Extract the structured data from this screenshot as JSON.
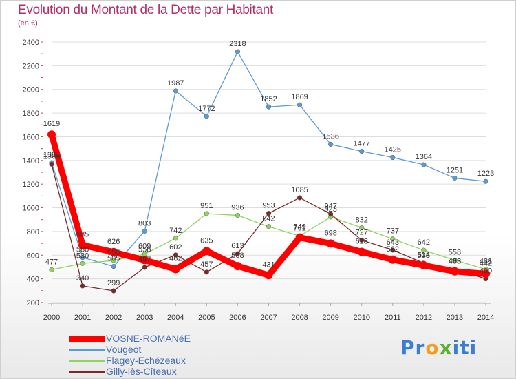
{
  "chart_data": {
    "type": "line",
    "title": "Evolution du Montant de la Dette par Habitant",
    "subtitle": "(en €)",
    "x": [
      "2000",
      "2001",
      "2002",
      "2003",
      "2004",
      "2005",
      "2006",
      "2007",
      "2008",
      "2009",
      "2010",
      "2011",
      "2012",
      "2013",
      "2014"
    ],
    "ylim": [
      200,
      2400
    ],
    "yticks": [
      200,
      400,
      600,
      800,
      1000,
      1200,
      1400,
      1600,
      1800,
      2000,
      2200,
      2400
    ],
    "grid": "horizontal",
    "legend_position": "bottom-left",
    "series": [
      {
        "name": "Vougeot",
        "color": "#5b9bd5",
        "values": [
          1381,
          580,
          505,
          803,
          1987,
          1772,
          2318,
          1852,
          1869,
          1536,
          1477,
          1425,
          1364,
          1251,
          1223
        ]
      },
      {
        "name": "Flagey-Echézeaux",
        "color": "#8fd45e",
        "values": [
          477,
          530,
          555,
          609,
          742,
          951,
          936,
          842,
          761,
          923,
          832,
          737,
          642,
          558,
          481
        ]
      },
      {
        "name": "Gilly-lès-Cîteaux",
        "color": "#7b2a2a",
        "values": [
          1368,
          340,
          299,
          497,
          602,
          457,
          613,
          953,
          1085,
          947,
          727,
          643,
          533,
          483,
          400
        ]
      },
      {
        "name": "VOSNE-ROMANéE",
        "color": "#ff0000",
        "values": [
          1619,
          685,
          626,
          558,
          482,
          635,
          508,
          431,
          749,
          698,
          628,
          562,
          514,
          463,
          442
        ]
      }
    ],
    "legend_order": [
      3,
      0,
      1,
      2
    ]
  },
  "logo": {
    "letters": [
      "P",
      "r",
      "o",
      "x",
      "i",
      "t",
      "i"
    ],
    "colors": [
      "#3a7fd5",
      "#3a7fd5",
      "#f0a020",
      "#5bb030",
      "#3a7fd5",
      "#3a7fd5",
      "#3a7fd5"
    ]
  }
}
